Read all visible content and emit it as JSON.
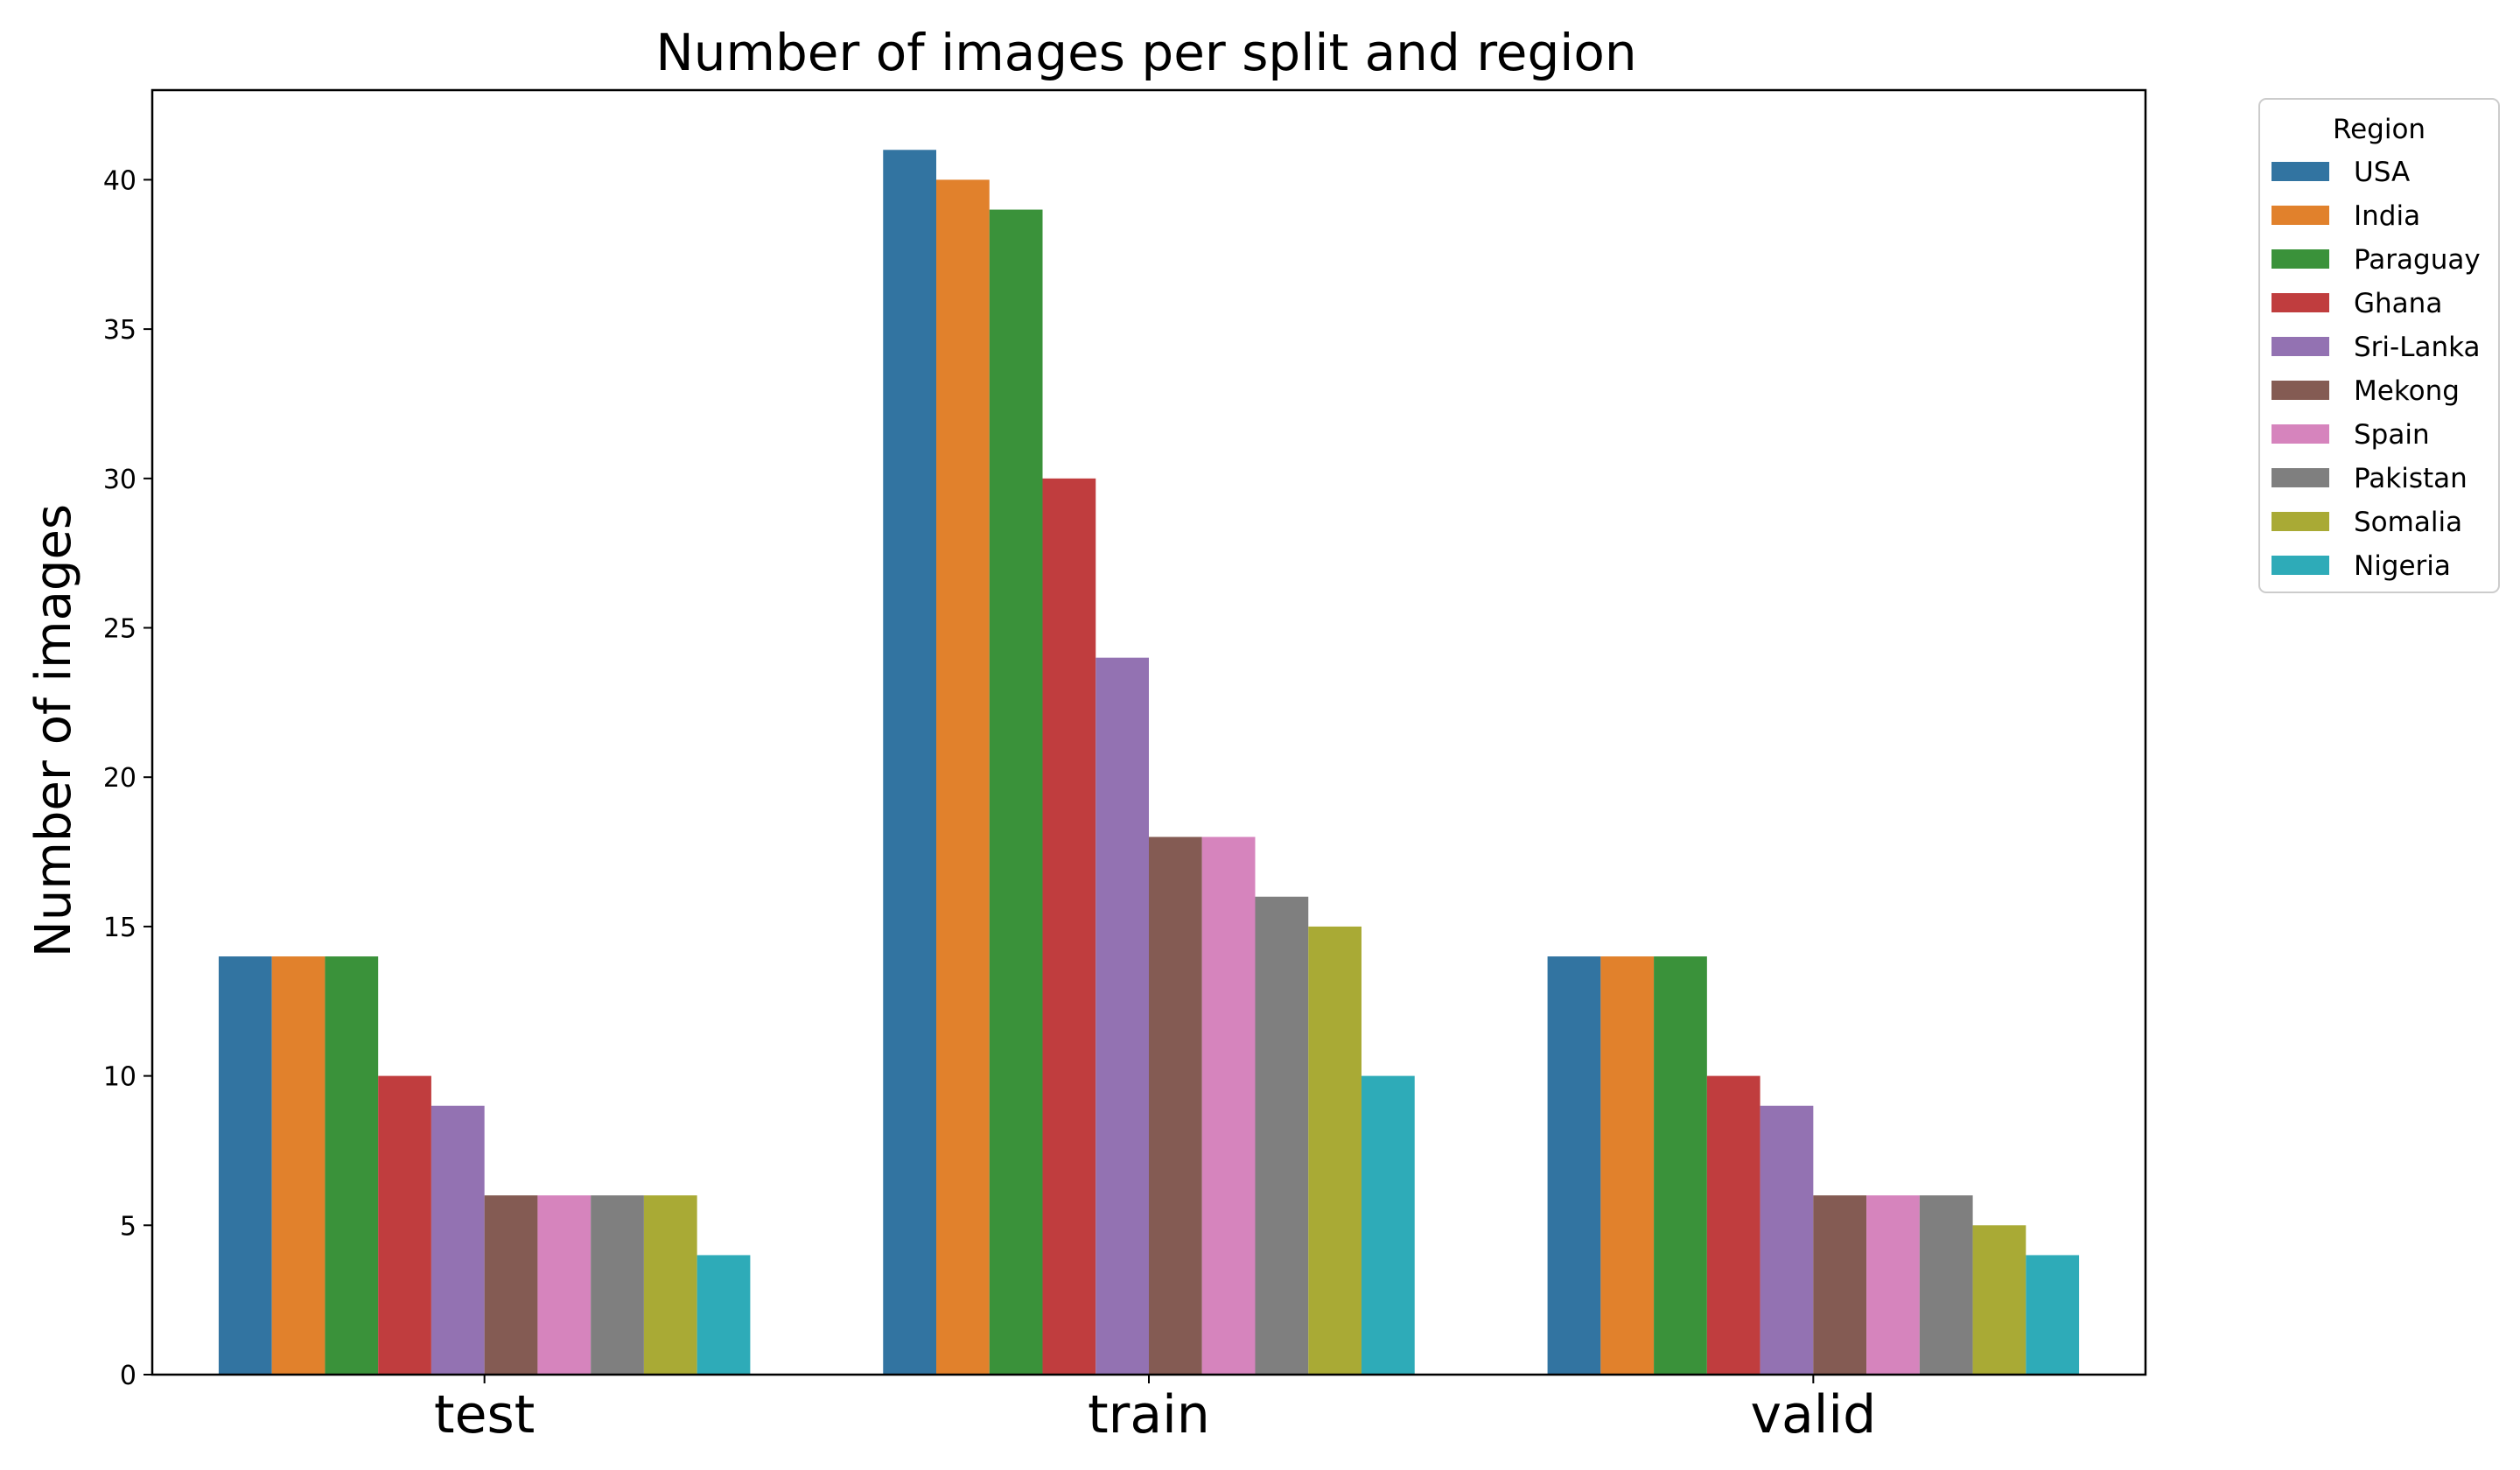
{
  "chart_data": {
    "type": "bar",
    "title": "Number of images per split and region",
    "xlabel": "",
    "ylabel": "Number of images",
    "categories": [
      "test",
      "train",
      "valid"
    ],
    "ylim": [
      0,
      43
    ],
    "yticks": [
      0,
      5,
      10,
      15,
      20,
      25,
      30,
      35,
      40
    ],
    "grid": false,
    "legend": {
      "title": "Region",
      "placement": "outside upper right"
    },
    "series": [
      {
        "name": "USA",
        "color": "#3274a1",
        "values": [
          14,
          41,
          14
        ]
      },
      {
        "name": "India",
        "color": "#e1812c",
        "values": [
          14,
          40,
          14
        ]
      },
      {
        "name": "Paraguay",
        "color": "#3a923a",
        "values": [
          14,
          39,
          14
        ]
      },
      {
        "name": "Ghana",
        "color": "#c03d3e",
        "values": [
          10,
          30,
          10
        ]
      },
      {
        "name": "Sri-Lanka",
        "color": "#9372b2",
        "values": [
          9,
          24,
          9
        ]
      },
      {
        "name": "Mekong",
        "color": "#845b53",
        "values": [
          6,
          18,
          6
        ]
      },
      {
        "name": "Spain",
        "color": "#d684bd",
        "values": [
          6,
          18,
          6
        ]
      },
      {
        "name": "Pakistan",
        "color": "#7f7f7f",
        "values": [
          6,
          16,
          6
        ]
      },
      {
        "name": "Somalia",
        "color": "#a9aa35",
        "values": [
          6,
          15,
          5
        ]
      },
      {
        "name": "Nigeria",
        "color": "#2eabb8",
        "values": [
          4,
          10,
          4
        ]
      }
    ]
  }
}
